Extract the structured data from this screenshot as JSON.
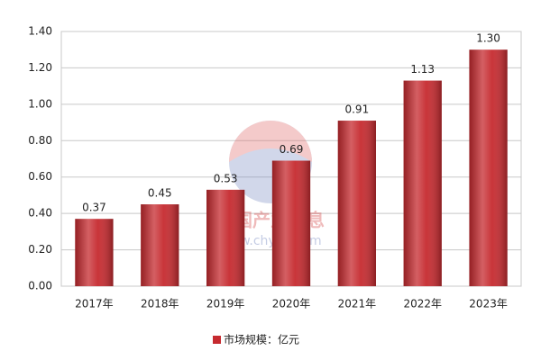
{
  "chart_data": {
    "type": "bar",
    "categories": [
      "2017年",
      "2018年",
      "2019年",
      "2020年",
      "2021年",
      "2022年",
      "2023年"
    ],
    "series": [
      {
        "name": "市场规模：亿元",
        "color": "#c62a2f",
        "values": [
          0.37,
          0.45,
          0.53,
          0.69,
          0.91,
          1.13,
          1.3
        ],
        "value_labels": [
          "0.37",
          "0.45",
          "0.53",
          "0.69",
          "0.91",
          "1.13",
          "1.30"
        ]
      }
    ],
    "ylim": [
      0,
      1.4
    ],
    "yticks": [
      {
        "value": 0,
        "label": "0.00"
      },
      {
        "value": 0.2,
        "label": "0.20"
      },
      {
        "value": 0.4,
        "label": "0.40"
      },
      {
        "value": 0.6,
        "label": "0.60"
      },
      {
        "value": 0.8,
        "label": "0.80"
      },
      {
        "value": 1.0,
        "label": "1.00"
      },
      {
        "value": 1.2,
        "label": "1.20"
      },
      {
        "value": 1.4,
        "label": "1.40"
      }
    ],
    "grid": true,
    "legend": "bottom",
    "watermark": [
      "中国产业信息",
      "www.chyxx.com"
    ]
  }
}
